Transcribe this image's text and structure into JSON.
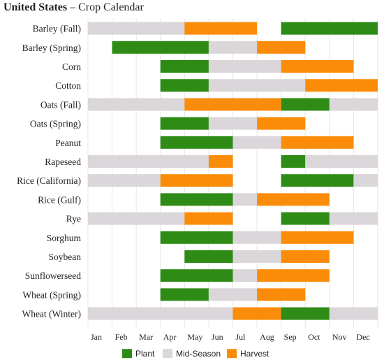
{
  "title": {
    "country": "United States",
    "separator": "–",
    "subtitle": "Crop Calendar"
  },
  "chart_data": {
    "type": "bar",
    "chart_style": "gantt",
    "months": [
      "Jan",
      "Feb",
      "Mar",
      "Apr",
      "May",
      "Jun",
      "Jul",
      "Aug",
      "Sep",
      "Oct",
      "Nov",
      "Dec"
    ],
    "stage_colors": {
      "Plant": "#2e8b15",
      "Mid-Season": "#dad6da",
      "Harvest": "#fb8c0a"
    },
    "legend": [
      {
        "name": "Plant",
        "color": "#2e8b15"
      },
      {
        "name": "Mid-Season",
        "color": "#dad6da"
      },
      {
        "name": "Harvest",
        "color": "#fb8c0a"
      }
    ],
    "rows": [
      {
        "crop": "Barley (Fall)",
        "segments": [
          {
            "stage": "Mid-Season",
            "start": 0,
            "end": 4
          },
          {
            "stage": "Harvest",
            "start": 4,
            "end": 7
          },
          {
            "stage": "Plant",
            "start": 8,
            "end": 12
          }
        ]
      },
      {
        "crop": "Barley (Spring)",
        "segments": [
          {
            "stage": "Plant",
            "start": 1,
            "end": 5
          },
          {
            "stage": "Mid-Season",
            "start": 5,
            "end": 7
          },
          {
            "stage": "Harvest",
            "start": 7,
            "end": 9
          }
        ]
      },
      {
        "crop": "Corn",
        "segments": [
          {
            "stage": "Plant",
            "start": 3,
            "end": 5
          },
          {
            "stage": "Mid-Season",
            "start": 5,
            "end": 8
          },
          {
            "stage": "Harvest",
            "start": 8,
            "end": 11
          }
        ]
      },
      {
        "crop": "Cotton",
        "segments": [
          {
            "stage": "Plant",
            "start": 3,
            "end": 5
          },
          {
            "stage": "Mid-Season",
            "start": 5,
            "end": 9
          },
          {
            "stage": "Harvest",
            "start": 9,
            "end": 12
          }
        ]
      },
      {
        "crop": "Oats (Fall)",
        "segments": [
          {
            "stage": "Mid-Season",
            "start": 0,
            "end": 4
          },
          {
            "stage": "Harvest",
            "start": 4,
            "end": 8
          },
          {
            "stage": "Plant",
            "start": 8,
            "end": 10
          },
          {
            "stage": "Mid-Season",
            "start": 10,
            "end": 12
          }
        ]
      },
      {
        "crop": "Oats (Spring)",
        "segments": [
          {
            "stage": "Plant",
            "start": 3,
            "end": 5
          },
          {
            "stage": "Mid-Season",
            "start": 5,
            "end": 7
          },
          {
            "stage": "Harvest",
            "start": 7,
            "end": 9
          }
        ]
      },
      {
        "crop": "Peanut",
        "segments": [
          {
            "stage": "Plant",
            "start": 3,
            "end": 6
          },
          {
            "stage": "Mid-Season",
            "start": 6,
            "end": 8
          },
          {
            "stage": "Harvest",
            "start": 8,
            "end": 11
          }
        ]
      },
      {
        "crop": "Rapeseed",
        "segments": [
          {
            "stage": "Mid-Season",
            "start": 0,
            "end": 5
          },
          {
            "stage": "Harvest",
            "start": 5,
            "end": 6
          },
          {
            "stage": "Plant",
            "start": 8,
            "end": 9
          },
          {
            "stage": "Mid-Season",
            "start": 9,
            "end": 12
          }
        ]
      },
      {
        "crop": "Rice (California)",
        "segments": [
          {
            "stage": "Mid-Season",
            "start": 0,
            "end": 3
          },
          {
            "stage": "Harvest",
            "start": 3,
            "end": 6
          },
          {
            "stage": "Plant",
            "start": 8,
            "end": 11
          },
          {
            "stage": "Mid-Season",
            "start": 11,
            "end": 12
          }
        ]
      },
      {
        "crop": "Rice (Gulf)",
        "segments": [
          {
            "stage": "Plant",
            "start": 3,
            "end": 6
          },
          {
            "stage": "Mid-Season",
            "start": 6,
            "end": 7
          },
          {
            "stage": "Harvest",
            "start": 7,
            "end": 10
          }
        ]
      },
      {
        "crop": "Rye",
        "segments": [
          {
            "stage": "Mid-Season",
            "start": 0,
            "end": 4
          },
          {
            "stage": "Harvest",
            "start": 4,
            "end": 6
          },
          {
            "stage": "Plant",
            "start": 8,
            "end": 10
          },
          {
            "stage": "Mid-Season",
            "start": 10,
            "end": 12
          }
        ]
      },
      {
        "crop": "Sorghum",
        "segments": [
          {
            "stage": "Plant",
            "start": 3,
            "end": 6
          },
          {
            "stage": "Mid-Season",
            "start": 6,
            "end": 8
          },
          {
            "stage": "Harvest",
            "start": 8,
            "end": 11
          }
        ]
      },
      {
        "crop": "Soybean",
        "segments": [
          {
            "stage": "Plant",
            "start": 4,
            "end": 6
          },
          {
            "stage": "Mid-Season",
            "start": 6,
            "end": 8
          },
          {
            "stage": "Harvest",
            "start": 8,
            "end": 10
          }
        ]
      },
      {
        "crop": "Sunflowerseed",
        "segments": [
          {
            "stage": "Plant",
            "start": 3,
            "end": 6
          },
          {
            "stage": "Mid-Season",
            "start": 6,
            "end": 7
          },
          {
            "stage": "Harvest",
            "start": 7,
            "end": 10
          }
        ]
      },
      {
        "crop": "Wheat (Spring)",
        "segments": [
          {
            "stage": "Plant",
            "start": 3,
            "end": 5
          },
          {
            "stage": "Mid-Season",
            "start": 5,
            "end": 7
          },
          {
            "stage": "Harvest",
            "start": 7,
            "end": 9
          }
        ]
      },
      {
        "crop": "Wheat (Winter)",
        "segments": [
          {
            "stage": "Mid-Season",
            "start": 0,
            "end": 6
          },
          {
            "stage": "Harvest",
            "start": 6,
            "end": 8
          },
          {
            "stage": "Plant",
            "start": 8,
            "end": 10
          },
          {
            "stage": "Mid-Season",
            "start": 10,
            "end": 12
          }
        ]
      }
    ]
  }
}
